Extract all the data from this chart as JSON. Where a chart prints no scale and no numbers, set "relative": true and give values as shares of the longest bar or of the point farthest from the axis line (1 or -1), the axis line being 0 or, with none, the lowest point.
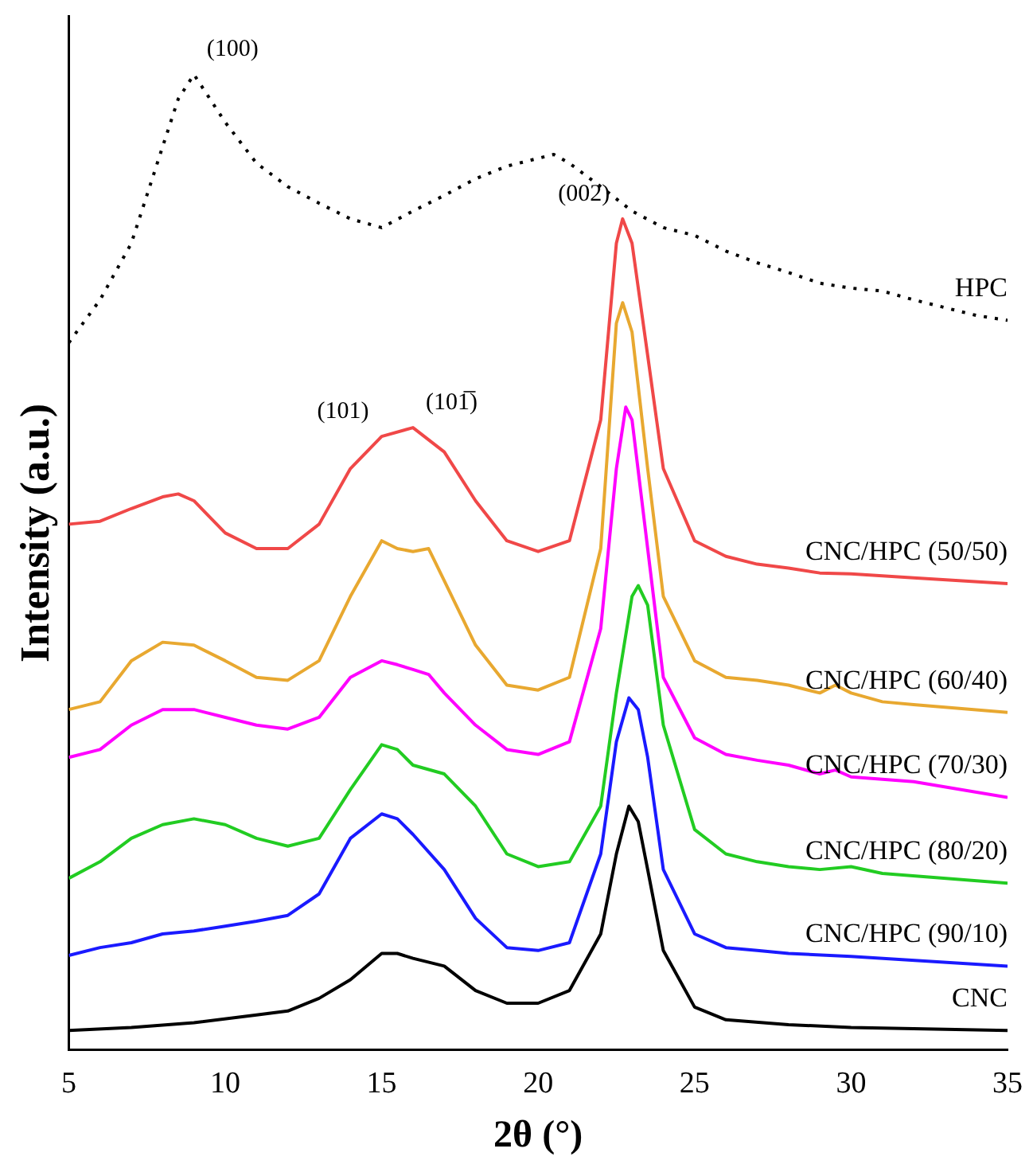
{
  "chart_data": {
    "type": "line",
    "xlabel": "2θ (°)",
    "ylabel": "Intensity (a.u.)",
    "relative": true,
    "xlim": [
      5,
      35
    ],
    "xticks": [
      5,
      10,
      15,
      20,
      25,
      30,
      35
    ],
    "grid": false,
    "legend": false,
    "marker": "none",
    "annotations": [
      {
        "text": "(100)",
        "x": 9,
        "y": 1
      },
      {
        "text": "(101)",
        "x": 15,
        "y": 0.629
      },
      {
        "text": "(101̅)",
        "x": 16,
        "y": 0.638
      },
      {
        "text": "(002)",
        "x": 22.7,
        "y": 0.852
      }
    ],
    "series": [
      {
        "name": "HPC",
        "color": "#000000",
        "line_style": "dotted",
        "x": [
          5,
          6,
          7,
          8,
          8.5,
          9,
          10,
          11,
          12,
          13,
          14,
          15,
          16,
          17,
          18,
          19,
          20,
          20.5,
          21,
          22,
          23,
          24,
          25,
          26,
          27,
          28,
          29,
          30,
          31,
          32,
          33,
          34,
          35
        ],
        "values": [
          0.725,
          0.769,
          0.827,
          0.926,
          0.975,
          1,
          0.951,
          0.909,
          0.885,
          0.868,
          0.852,
          0.843,
          0.86,
          0.876,
          0.893,
          0.906,
          0.914,
          0.918,
          0.909,
          0.885,
          0.86,
          0.843,
          0.835,
          0.819,
          0.807,
          0.797,
          0.786,
          0.781,
          0.778,
          0.769,
          0.761,
          0.753,
          0.748
        ]
      },
      {
        "name": "CNC/HPC (50/50)",
        "color": "#f04848",
        "x": [
          5,
          6,
          7,
          8,
          8.5,
          9,
          10,
          11,
          12,
          13,
          14,
          15,
          16,
          17,
          18,
          19,
          20,
          21,
          22,
          22.5,
          22.7,
          23,
          23.5,
          24,
          25,
          26,
          27,
          28,
          29,
          30,
          32,
          35
        ],
        "values": [
          0.539,
          0.542,
          0.555,
          0.567,
          0.57,
          0.563,
          0.53,
          0.514,
          0.514,
          0.539,
          0.596,
          0.629,
          0.638,
          0.613,
          0.563,
          0.522,
          0.511,
          0.522,
          0.646,
          0.827,
          0.852,
          0.827,
          0.712,
          0.596,
          0.522,
          0.506,
          0.498,
          0.494,
          0.489,
          0.488,
          0.484,
          0.478
        ]
      },
      {
        "name": "CNC/HPC (60/40)",
        "color": "#e8a830",
        "x": [
          5,
          6,
          7,
          8,
          9,
          10,
          11,
          12,
          13,
          14,
          15,
          15.5,
          16,
          16.5,
          17,
          18,
          19,
          20,
          21,
          22,
          22.5,
          22.7,
          23,
          23.5,
          24,
          25,
          26,
          27,
          28,
          29,
          29.5,
          30,
          31,
          32,
          35
        ],
        "values": [
          0.349,
          0.357,
          0.399,
          0.418,
          0.415,
          0.399,
          0.382,
          0.379,
          0.399,
          0.465,
          0.522,
          0.514,
          0.511,
          0.514,
          0.481,
          0.415,
          0.374,
          0.369,
          0.382,
          0.514,
          0.745,
          0.766,
          0.736,
          0.596,
          0.465,
          0.399,
          0.382,
          0.379,
          0.374,
          0.366,
          0.374,
          0.366,
          0.357,
          0.354,
          0.346
        ]
      },
      {
        "name": "CNC/HPC (70/30)",
        "color": "#ff00ff",
        "x": [
          5,
          6,
          7,
          8,
          9,
          10,
          11,
          12,
          13,
          14,
          15,
          15.5,
          16,
          16.5,
          17,
          18,
          19,
          20,
          21,
          22,
          22.5,
          22.8,
          23,
          23.5,
          24,
          25,
          26,
          27,
          28,
          29,
          29.5,
          30,
          32,
          35
        ],
        "values": [
          0.3,
          0.308,
          0.333,
          0.349,
          0.349,
          0.341,
          0.333,
          0.329,
          0.341,
          0.382,
          0.399,
          0.395,
          0.39,
          0.385,
          0.366,
          0.333,
          0.308,
          0.303,
          0.316,
          0.432,
          0.596,
          0.659,
          0.646,
          0.514,
          0.382,
          0.32,
          0.303,
          0.297,
          0.292,
          0.283,
          0.287,
          0.28,
          0.275,
          0.259
        ]
      },
      {
        "name": "CNC/HPC (80/20)",
        "color": "#22cc22",
        "x": [
          5,
          6,
          7,
          8,
          9,
          10,
          11,
          12,
          13,
          14,
          15,
          15.5,
          16,
          17,
          18,
          19,
          20,
          21,
          22,
          22.5,
          23,
          23.2,
          23.5,
          24,
          25,
          26,
          27,
          28,
          29,
          30,
          31,
          35
        ],
        "values": [
          0.176,
          0.193,
          0.217,
          0.231,
          0.237,
          0.231,
          0.217,
          0.209,
          0.217,
          0.267,
          0.313,
          0.308,
          0.292,
          0.283,
          0.25,
          0.201,
          0.188,
          0.193,
          0.25,
          0.366,
          0.465,
          0.476,
          0.456,
          0.333,
          0.226,
          0.201,
          0.193,
          0.188,
          0.185,
          0.188,
          0.181,
          0.171
        ]
      },
      {
        "name": "CNC/HPC (90/10)",
        "color": "#1a1aff",
        "x": [
          5,
          6,
          7,
          8,
          9,
          10,
          11,
          12,
          13,
          14,
          15,
          15.5,
          16,
          17,
          18,
          19,
          20,
          21,
          22,
          22.5,
          22.9,
          23.2,
          23.5,
          24,
          25,
          26,
          27,
          28,
          30,
          35
        ],
        "values": [
          0.097,
          0.105,
          0.11,
          0.119,
          0.122,
          0.127,
          0.132,
          0.138,
          0.16,
          0.217,
          0.242,
          0.237,
          0.221,
          0.185,
          0.135,
          0.105,
          0.102,
          0.11,
          0.201,
          0.316,
          0.361,
          0.349,
          0.3,
          0.185,
          0.119,
          0.105,
          0.102,
          0.099,
          0.096,
          0.086
        ]
      },
      {
        "name": "CNC",
        "color": "#000000",
        "x": [
          5,
          7,
          9,
          11,
          12,
          13,
          14,
          15,
          15.5,
          16,
          17,
          18,
          19,
          20,
          21,
          22,
          22.5,
          22.9,
          23.2,
          23.5,
          24,
          25,
          26,
          28,
          30,
          35
        ],
        "values": [
          0.02,
          0.023,
          0.028,
          0.036,
          0.04,
          0.053,
          0.072,
          0.099,
          0.099,
          0.094,
          0.086,
          0.061,
          0.048,
          0.048,
          0.061,
          0.119,
          0.201,
          0.25,
          0.234,
          0.185,
          0.102,
          0.044,
          0.031,
          0.026,
          0.023,
          0.02
        ]
      }
    ]
  }
}
